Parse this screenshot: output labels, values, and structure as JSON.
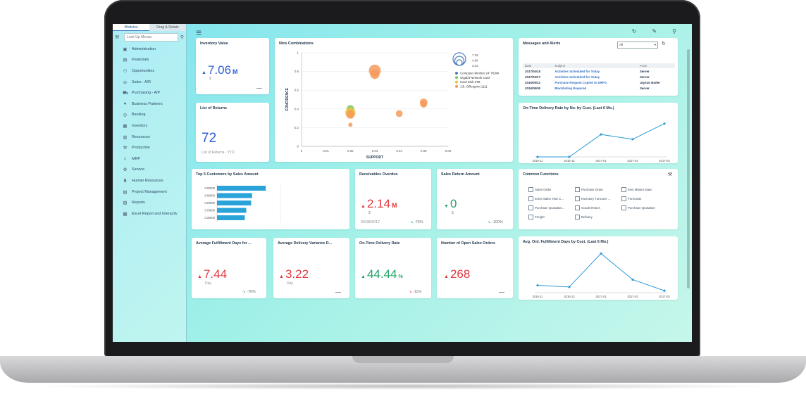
{
  "sidebar": {
    "tabs": [
      "Modules",
      "Drag & Relate"
    ],
    "search_placeholder": "Look Up Menus",
    "items": [
      {
        "label": "Administration",
        "icon": "admin-icon"
      },
      {
        "label": "Financials",
        "icon": "chart-icon"
      },
      {
        "label": "Opportunities",
        "icon": "opportunities-icon"
      },
      {
        "label": "Sales - A/R",
        "icon": "sales-icon"
      },
      {
        "label": "Purchasing - A/P",
        "icon": "cart-icon"
      },
      {
        "label": "Business Partners",
        "icon": "person-icon"
      },
      {
        "label": "Banking",
        "icon": "banking-icon"
      },
      {
        "label": "Inventory",
        "icon": "inventory-icon"
      },
      {
        "label": "Resources",
        "icon": "resources-icon"
      },
      {
        "label": "Production",
        "icon": "production-icon"
      },
      {
        "label": "MRP",
        "icon": "mrp-icon"
      },
      {
        "label": "Service",
        "icon": "service-icon"
      },
      {
        "label": "Human Resources",
        "icon": "hr-icon"
      },
      {
        "label": "Project Management",
        "icon": "project-icon"
      },
      {
        "label": "Reports",
        "icon": "reports-icon"
      },
      {
        "label": "Excel Report and Interactiv",
        "icon": "excel-icon"
      }
    ]
  },
  "inventory_value": {
    "title": "Inventory Value",
    "value": "7.06",
    "unit": "M",
    "sub": "$"
  },
  "list_of_returns": {
    "title": "List of Returns",
    "value": "72",
    "sub": "List of Returns - YTD"
  },
  "nice_combinations": {
    "title": "Nice Combinations"
  },
  "messages": {
    "title": "Messages and Alerts",
    "filter": "All",
    "columns": [
      "Date",
      "Subject",
      "From"
    ],
    "rows": [
      [
        "2017/04/18",
        "Activities Scheduled for Today",
        "Server"
      ],
      [
        "2017/04/17",
        "Activities Scheduled for Today",
        "Server"
      ],
      [
        "2016/09/12",
        "Purchase Request Copied to DRPO",
        "Jayson Butler"
      ],
      [
        "2016/08/05",
        "Blacklisting Required",
        "Server"
      ]
    ]
  },
  "ontime_rate_chart": {
    "title": "On-Time Delivery Rate by No. by Cust. (Last 6 Mo.)"
  },
  "top5": {
    "title": "Top 5 Customers by Sales Amount"
  },
  "receivables": {
    "title": "Receivables Overdue",
    "value": "2.14",
    "unit": "M",
    "sub": "$",
    "date": "04/18/2017",
    "trend": "-76%"
  },
  "sales_return": {
    "title": "Sales Return Amount",
    "value": "0",
    "sub": "$",
    "trend": "-100%"
  },
  "common_functions": {
    "title": "Common Functions",
    "items": [
      "Sales Order",
      "Purchase Order",
      "Item Master Data",
      "Items Sales Year C...",
      "Inventory Turnover ...",
      "Forecasts",
      "Purchase Quotation...",
      "Goods Return",
      "Purchase Quotation",
      "Freight",
      "Delivery"
    ]
  },
  "avg_fulfillment": {
    "title": "Average Fulfillment Days for ...",
    "value": "7.44",
    "sub": "Day",
    "trend": "-76%"
  },
  "avg_delivery_var": {
    "title": "Average Delivery Variance D...",
    "value": "3.22",
    "sub": "Day"
  },
  "ontime_rate_kpi": {
    "title": "On-Time Delivery Rate",
    "value": "44.44",
    "unit": "%",
    "trend": "-11%"
  },
  "open_sales": {
    "title": "Number of Open Sales Orders",
    "value": "268"
  },
  "avg_ord_chart": {
    "title": "Avg. Ord. Fulfillment Days by Cust. (Last 6 Mo.)"
  },
  "chart_data": [
    {
      "type": "scatter",
      "title": "Nice Combinations",
      "xlabel": "SUPPORT",
      "ylabel": "CONFIDENCE",
      "xlim": [
        0,
        0.06
      ],
      "ylim": [
        0,
        1
      ],
      "xticks": [
        "0",
        "0.01",
        "0.02",
        "0.03",
        "0.04",
        "0.05",
        "0.06"
      ],
      "yticks": [
        "0",
        "0.2",
        "0.4",
        "0.6",
        "0.8",
        "1"
      ],
      "size_legend": [
        "7.29",
        "4.66",
        "2.03"
      ],
      "series": [
        {
          "name": "Computer Monitor 24\" HDMI",
          "color": "#4a7fbf",
          "points": []
        },
        {
          "name": "Gigabit Network Card",
          "color": "#7cc46a",
          "points": [
            [
              0.02,
              0.4,
              4.5
            ]
          ]
        },
        {
          "name": "Hard Disk 3TB",
          "color": "#f0c23a",
          "points": [
            [
              0.02,
              0.36,
              6
            ]
          ]
        },
        {
          "name": "J.B. Officeprint 1111",
          "color": "#f59a5b",
          "points": [
            [
              0.02,
              0.34,
              5
            ],
            [
              0.02,
              0.23,
              2.5
            ],
            [
              0.03,
              0.81,
              7
            ],
            [
              0.03,
              0.77,
              5.5
            ],
            [
              0.04,
              0.35,
              4
            ],
            [
              0.05,
              0.47,
              4.5
            ],
            [
              0.05,
              0.45,
              4
            ]
          ]
        }
      ]
    },
    {
      "type": "line",
      "title": "On-Time Delivery Rate by No. by Cust. (Last 6 Mo.)",
      "categories": [
        "2016-11",
        "2016-12",
        "2017-01",
        "2017-02",
        "2017-03"
      ],
      "values": [
        0,
        0,
        0.56,
        0.44,
        0.83
      ],
      "ylim": [
        0,
        1
      ]
    },
    {
      "type": "bar",
      "title": "Top 5 Customers by Sales Amount",
      "categories": [
        "C20000",
        "C40000",
        "C23900",
        "C70000",
        "C30000"
      ],
      "values": [
        100,
        72,
        70,
        60,
        57
      ],
      "xlim": [
        0,
        130
      ]
    },
    {
      "type": "line",
      "title": "Avg. Ord. Fulfillment Days by Cust. (Last 6 Mo.)",
      "categories": [
        "2016-11",
        "2016-12",
        "2017-01",
        "2017-02",
        "2017-03"
      ],
      "values": [
        1.8,
        1.4,
        9.6,
        3.2,
        0.5
      ],
      "ylim": [
        0,
        10
      ]
    }
  ]
}
